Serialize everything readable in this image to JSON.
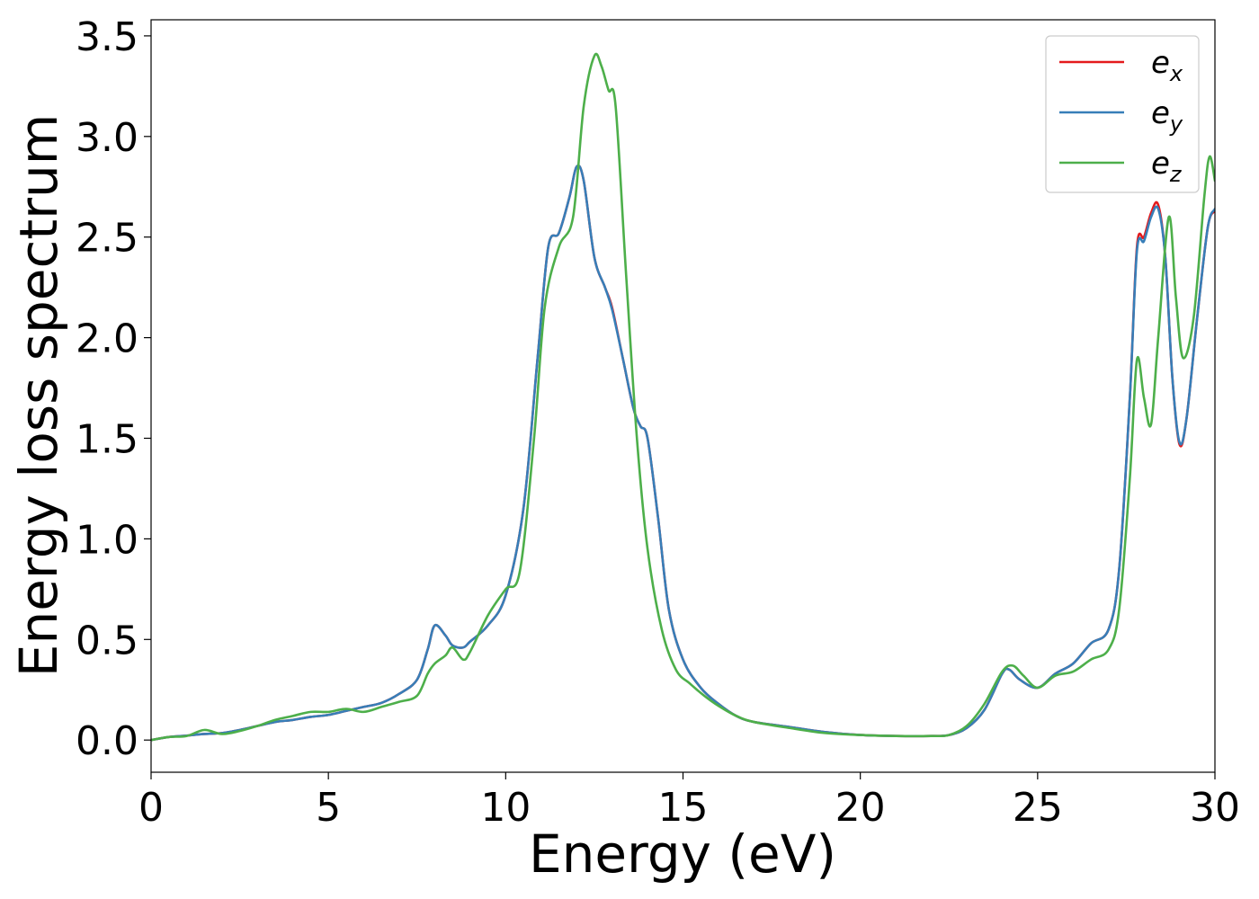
{
  "chart_data": {
    "type": "line",
    "xlabel": "Energy (eV)",
    "ylabel": "Energy loss spectrum",
    "xlim": [
      0,
      30
    ],
    "ylim": [
      -0.16,
      3.58
    ],
    "xticks": [
      0,
      5,
      10,
      15,
      20,
      25,
      30
    ],
    "xtick_labels": [
      "0",
      "5",
      "10",
      "15",
      "20",
      "25",
      "30"
    ],
    "yticks": [
      0.0,
      0.5,
      1.0,
      1.5,
      2.0,
      2.5,
      3.0,
      3.5
    ],
    "ytick_labels": [
      "0.0",
      "0.5",
      "1.0",
      "1.5",
      "2.0",
      "2.5",
      "3.0",
      "3.5"
    ],
    "grid": false,
    "legend_position": "top-right",
    "series": [
      {
        "name": "e_x",
        "legend_base": "e",
        "legend_sub": "x",
        "color": "#e41a1c",
        "points": [
          [
            0,
            0.0
          ],
          [
            0.5,
            0.015
          ],
          [
            1.0,
            0.022
          ],
          [
            1.5,
            0.03
          ],
          [
            2.0,
            0.035
          ],
          [
            2.5,
            0.05
          ],
          [
            3.0,
            0.07
          ],
          [
            3.5,
            0.09
          ],
          [
            4.0,
            0.1
          ],
          [
            4.5,
            0.115
          ],
          [
            5.0,
            0.125
          ],
          [
            5.5,
            0.145
          ],
          [
            6.0,
            0.165
          ],
          [
            6.5,
            0.185
          ],
          [
            7.0,
            0.23
          ],
          [
            7.5,
            0.3
          ],
          [
            7.8,
            0.45
          ],
          [
            8.0,
            0.57
          ],
          [
            8.3,
            0.52
          ],
          [
            8.5,
            0.47
          ],
          [
            8.8,
            0.46
          ],
          [
            9.0,
            0.49
          ],
          [
            9.5,
            0.57
          ],
          [
            10.0,
            0.72
          ],
          [
            10.5,
            1.15
          ],
          [
            10.9,
            1.9
          ],
          [
            11.2,
            2.45
          ],
          [
            11.5,
            2.52
          ],
          [
            11.8,
            2.7
          ],
          [
            12.0,
            2.85
          ],
          [
            12.2,
            2.78
          ],
          [
            12.5,
            2.4
          ],
          [
            12.8,
            2.25
          ],
          [
            13.0,
            2.15
          ],
          [
            13.3,
            1.9
          ],
          [
            13.6,
            1.65
          ],
          [
            13.8,
            1.56
          ],
          [
            14.0,
            1.5
          ],
          [
            14.3,
            1.1
          ],
          [
            14.6,
            0.65
          ],
          [
            15.0,
            0.4
          ],
          [
            15.5,
            0.26
          ],
          [
            16.0,
            0.18
          ],
          [
            16.5,
            0.12
          ],
          [
            17.0,
            0.09
          ],
          [
            18.0,
            0.065
          ],
          [
            19.0,
            0.04
          ],
          [
            20.0,
            0.025
          ],
          [
            21.0,
            0.02
          ],
          [
            22.0,
            0.02
          ],
          [
            22.5,
            0.025
          ],
          [
            23.0,
            0.06
          ],
          [
            23.5,
            0.15
          ],
          [
            24.0,
            0.33
          ],
          [
            24.2,
            0.35
          ],
          [
            24.5,
            0.3
          ],
          [
            25.0,
            0.26
          ],
          [
            25.5,
            0.33
          ],
          [
            26.0,
            0.38
          ],
          [
            26.5,
            0.48
          ],
          [
            27.0,
            0.55
          ],
          [
            27.3,
            0.85
          ],
          [
            27.6,
            1.7
          ],
          [
            27.8,
            2.45
          ],
          [
            28.0,
            2.5
          ],
          [
            28.2,
            2.62
          ],
          [
            28.4,
            2.66
          ],
          [
            28.6,
            2.4
          ],
          [
            28.8,
            1.8
          ],
          [
            29.0,
            1.47
          ],
          [
            29.2,
            1.6
          ],
          [
            29.5,
            2.1
          ],
          [
            29.8,
            2.55
          ],
          [
            30.0,
            2.63
          ]
        ]
      },
      {
        "name": "e_y",
        "legend_base": "e",
        "legend_sub": "y",
        "color": "#377eb8",
        "points": [
          [
            0,
            0.0
          ],
          [
            0.5,
            0.015
          ],
          [
            1.0,
            0.022
          ],
          [
            1.5,
            0.03
          ],
          [
            2.0,
            0.035
          ],
          [
            2.5,
            0.05
          ],
          [
            3.0,
            0.07
          ],
          [
            3.5,
            0.09
          ],
          [
            4.0,
            0.1
          ],
          [
            4.5,
            0.115
          ],
          [
            5.0,
            0.125
          ],
          [
            5.5,
            0.145
          ],
          [
            6.0,
            0.165
          ],
          [
            6.5,
            0.185
          ],
          [
            7.0,
            0.23
          ],
          [
            7.5,
            0.3
          ],
          [
            7.8,
            0.45
          ],
          [
            8.0,
            0.57
          ],
          [
            8.3,
            0.52
          ],
          [
            8.5,
            0.47
          ],
          [
            8.8,
            0.46
          ],
          [
            9.0,
            0.49
          ],
          [
            9.5,
            0.57
          ],
          [
            10.0,
            0.72
          ],
          [
            10.5,
            1.15
          ],
          [
            10.9,
            1.9
          ],
          [
            11.2,
            2.45
          ],
          [
            11.5,
            2.52
          ],
          [
            11.8,
            2.7
          ],
          [
            12.0,
            2.85
          ],
          [
            12.2,
            2.78
          ],
          [
            12.5,
            2.4
          ],
          [
            12.8,
            2.25
          ],
          [
            13.0,
            2.14
          ],
          [
            13.3,
            1.9
          ],
          [
            13.6,
            1.65
          ],
          [
            13.8,
            1.56
          ],
          [
            14.0,
            1.5
          ],
          [
            14.3,
            1.1
          ],
          [
            14.6,
            0.65
          ],
          [
            15.0,
            0.4
          ],
          [
            15.5,
            0.26
          ],
          [
            16.0,
            0.18
          ],
          [
            16.5,
            0.12
          ],
          [
            17.0,
            0.09
          ],
          [
            18.0,
            0.065
          ],
          [
            19.0,
            0.04
          ],
          [
            20.0,
            0.025
          ],
          [
            21.0,
            0.02
          ],
          [
            22.0,
            0.02
          ],
          [
            22.5,
            0.025
          ],
          [
            23.0,
            0.06
          ],
          [
            23.5,
            0.15
          ],
          [
            24.0,
            0.33
          ],
          [
            24.2,
            0.35
          ],
          [
            24.5,
            0.3
          ],
          [
            25.0,
            0.26
          ],
          [
            25.5,
            0.33
          ],
          [
            26.0,
            0.38
          ],
          [
            26.5,
            0.48
          ],
          [
            27.0,
            0.55
          ],
          [
            27.3,
            0.85
          ],
          [
            27.6,
            1.7
          ],
          [
            27.8,
            2.43
          ],
          [
            28.0,
            2.48
          ],
          [
            28.2,
            2.6
          ],
          [
            28.4,
            2.64
          ],
          [
            28.6,
            2.4
          ],
          [
            28.8,
            1.8
          ],
          [
            29.0,
            1.48
          ],
          [
            29.2,
            1.6
          ],
          [
            29.5,
            2.1
          ],
          [
            29.8,
            2.55
          ],
          [
            30.0,
            2.64
          ]
        ]
      },
      {
        "name": "e_z",
        "legend_base": "e",
        "legend_sub": "z",
        "color": "#4daf4a",
        "points": [
          [
            0,
            0.0
          ],
          [
            0.5,
            0.015
          ],
          [
            1.0,
            0.02
          ],
          [
            1.5,
            0.05
          ],
          [
            2.0,
            0.03
          ],
          [
            2.5,
            0.045
          ],
          [
            3.0,
            0.07
          ],
          [
            3.5,
            0.1
          ],
          [
            4.0,
            0.12
          ],
          [
            4.5,
            0.14
          ],
          [
            5.0,
            0.14
          ],
          [
            5.5,
            0.155
          ],
          [
            6.0,
            0.14
          ],
          [
            6.5,
            0.165
          ],
          [
            7.0,
            0.19
          ],
          [
            7.5,
            0.22
          ],
          [
            7.8,
            0.33
          ],
          [
            8.0,
            0.38
          ],
          [
            8.3,
            0.42
          ],
          [
            8.5,
            0.46
          ],
          [
            8.8,
            0.4
          ],
          [
            9.0,
            0.44
          ],
          [
            9.5,
            0.62
          ],
          [
            10.0,
            0.75
          ],
          [
            10.4,
            0.84
          ],
          [
            10.8,
            1.5
          ],
          [
            11.1,
            2.15
          ],
          [
            11.5,
            2.45
          ],
          [
            11.9,
            2.6
          ],
          [
            12.2,
            3.15
          ],
          [
            12.5,
            3.4
          ],
          [
            12.7,
            3.35
          ],
          [
            12.9,
            3.23
          ],
          [
            13.1,
            3.15
          ],
          [
            13.4,
            2.3
          ],
          [
            13.7,
            1.5
          ],
          [
            14.0,
            0.95
          ],
          [
            14.4,
            0.55
          ],
          [
            14.8,
            0.35
          ],
          [
            15.2,
            0.28
          ],
          [
            15.6,
            0.22
          ],
          [
            16.0,
            0.17
          ],
          [
            16.5,
            0.12
          ],
          [
            17.0,
            0.09
          ],
          [
            18.0,
            0.06
          ],
          [
            19.0,
            0.035
          ],
          [
            20.0,
            0.025
          ],
          [
            21.0,
            0.02
          ],
          [
            22.0,
            0.02
          ],
          [
            22.5,
            0.025
          ],
          [
            23.0,
            0.07
          ],
          [
            23.5,
            0.18
          ],
          [
            24.0,
            0.34
          ],
          [
            24.3,
            0.37
          ],
          [
            24.6,
            0.32
          ],
          [
            25.0,
            0.26
          ],
          [
            25.5,
            0.32
          ],
          [
            26.0,
            0.34
          ],
          [
            26.5,
            0.4
          ],
          [
            27.0,
            0.45
          ],
          [
            27.3,
            0.65
          ],
          [
            27.6,
            1.3
          ],
          [
            27.8,
            1.89
          ],
          [
            28.0,
            1.7
          ],
          [
            28.2,
            1.57
          ],
          [
            28.4,
            2.0
          ],
          [
            28.7,
            2.6
          ],
          [
            28.9,
            2.2
          ],
          [
            29.1,
            1.9
          ],
          [
            29.4,
            2.1
          ],
          [
            29.7,
            2.7
          ],
          [
            29.85,
            2.9
          ],
          [
            30.0,
            2.78
          ]
        ]
      }
    ]
  }
}
